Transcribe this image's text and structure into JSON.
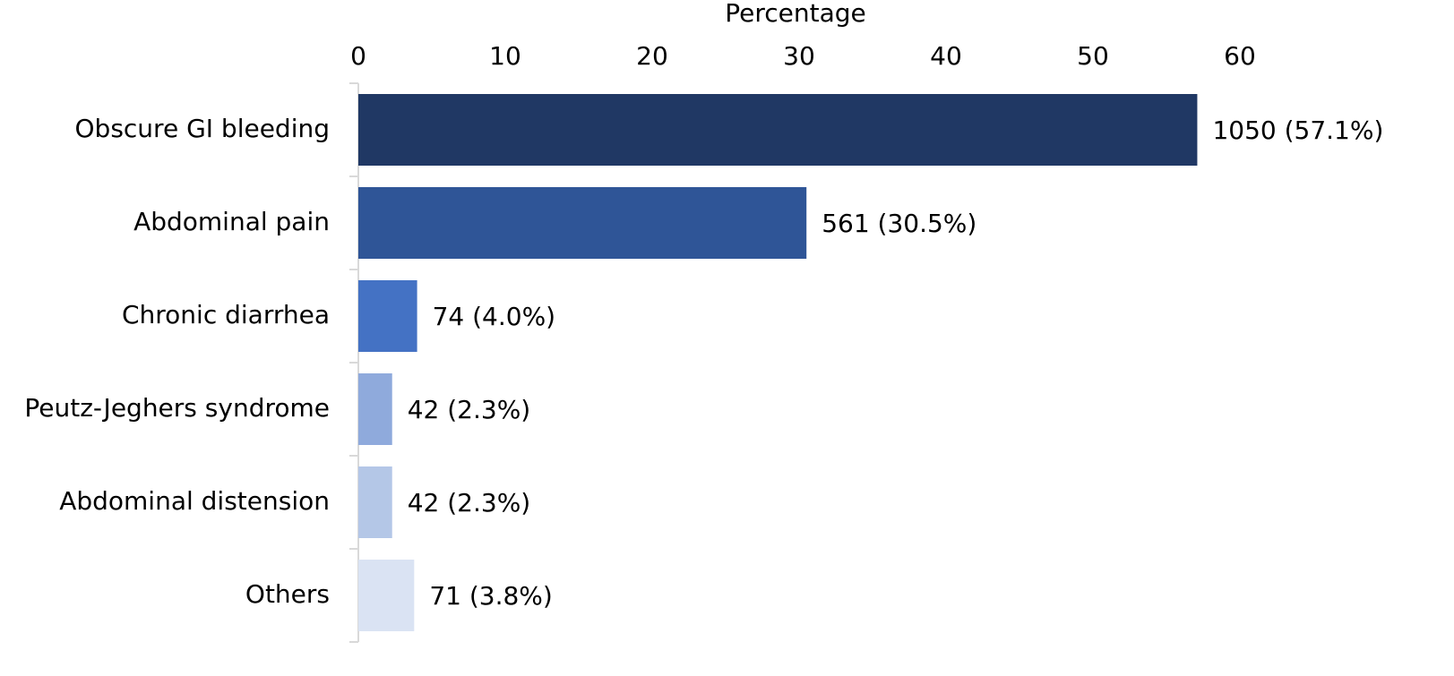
{
  "chart_data": {
    "type": "barh",
    "x_label": "Percentage",
    "categories": [
      "Obscure GI bleeding",
      "Abdominal pain",
      "Chronic diarrhea",
      "Peutz-Jeghers syndrome",
      "Abdominal distension",
      "Others"
    ],
    "values": [
      57.1,
      30.5,
      4.0,
      2.3,
      2.3,
      3.8
    ],
    "value_labels": [
      "1050 (57.1%)",
      "561 (30.5%)",
      "74 (4.0%)",
      "42 (2.3%)",
      "42 (2.3%)",
      "71 (3.8%)"
    ],
    "colors": [
      "#203864",
      "#2f5597",
      "#4472c4",
      "#8faadc",
      "#b4c7e7",
      "#dae3f3"
    ],
    "xlim": [
      0,
      60
    ],
    "xticks": [
      0,
      10,
      20,
      30,
      40,
      50,
      60
    ]
  }
}
